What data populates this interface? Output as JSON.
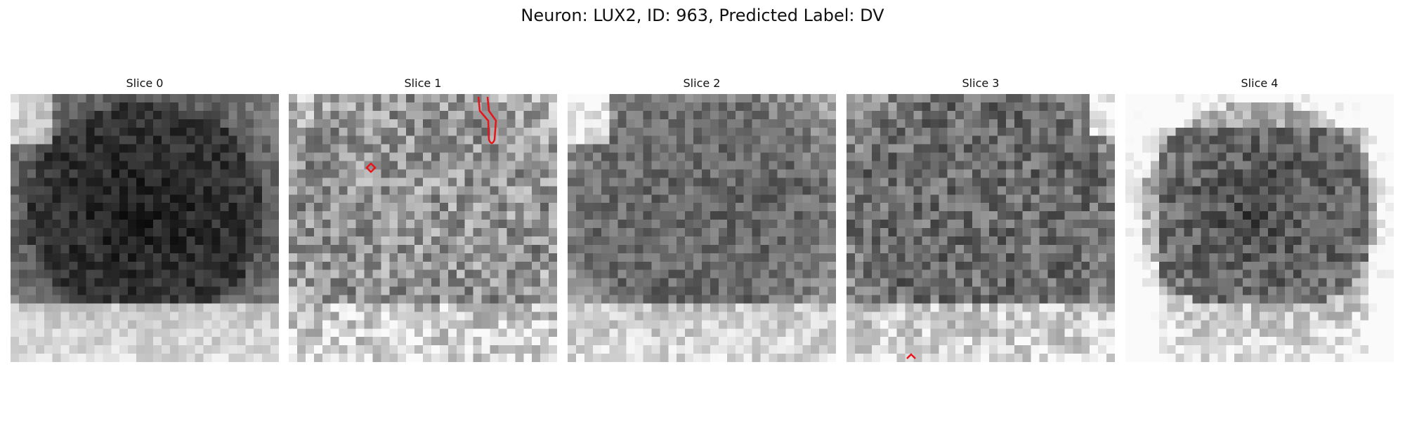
{
  "figure": {
    "title": "Neuron: LUX2, ID: 963, Predicted Label: DV",
    "grid_size": 32,
    "overlay_color": "#e8141a"
  },
  "panels": [
    {
      "title": "Slice 0",
      "base": 0.34,
      "center_dark": 0.22,
      "bottom_bright": true,
      "noise": 0.1,
      "corner_bright": "top-left"
    },
    {
      "title": "Slice 1",
      "base": 0.55,
      "center_dark": -0.05,
      "bottom_bright": true,
      "noise": 0.22,
      "corner_bright": "none"
    },
    {
      "title": "Slice 2",
      "base": 0.45,
      "center_dark": 0.05,
      "bottom_bright": true,
      "noise": 0.14,
      "corner_bright": "top-left"
    },
    {
      "title": "Slice 3",
      "base": 0.42,
      "center_dark": 0.0,
      "bottom_bright": true,
      "noise": 0.18,
      "corner_bright": "top-right"
    },
    {
      "title": "Slice 4",
      "base": 0.72,
      "center_dark": 0.45,
      "bottom_bright": true,
      "noise": 0.16,
      "corner_bright": "all"
    }
  ]
}
